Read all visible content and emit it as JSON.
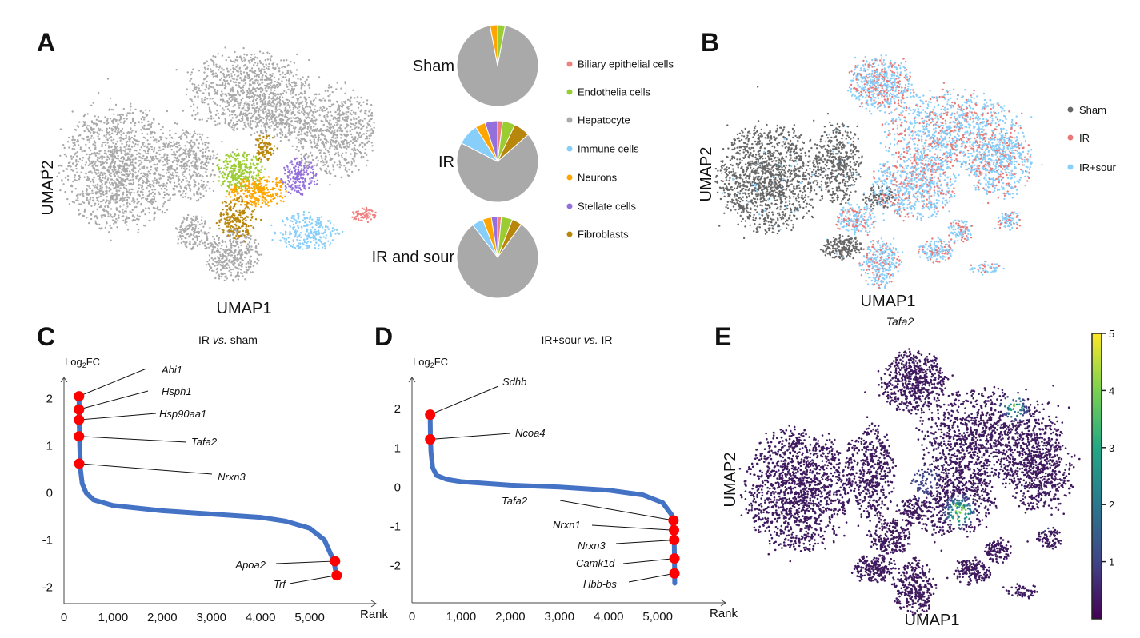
{
  "panels": {
    "A": {
      "letter": "A",
      "xlabel": "UMAP1",
      "ylabel": "UMAP2"
    },
    "B": {
      "letter": "B",
      "xlabel": "UMAP1",
      "ylabel": "UMAP2"
    },
    "C": {
      "letter": "C"
    },
    "D": {
      "letter": "D"
    },
    "E": {
      "letter": "E",
      "gene": "Tafa2",
      "xlabel": "UMAP1",
      "ylabel": "UMAP2"
    }
  },
  "cell_types": [
    {
      "name": "Biliary epithelial cells",
      "color": "#f08080"
    },
    {
      "name": "Endothelia cells",
      "color": "#9acd32"
    },
    {
      "name": "Hepatocyte",
      "color": "#a9a9a9"
    },
    {
      "name": "Immune cells",
      "color": "#87cefa"
    },
    {
      "name": "Neurons",
      "color": "#ffa500"
    },
    {
      "name": "Stellate cells",
      "color": "#9370db"
    },
    {
      "name": "Fibroblasts",
      "color": "#b8860b"
    }
  ],
  "groups": [
    {
      "name": "Sham",
      "color": "#666666"
    },
    {
      "name": "IR",
      "color": "#e87876"
    },
    {
      "name": "IR+sour",
      "color": "#87cefa"
    }
  ],
  "colorbar": {
    "ticks": [
      "1",
      "2",
      "3",
      "4",
      "5"
    ],
    "range": [
      0,
      5
    ],
    "colormap": "viridis"
  },
  "chart_data": [
    {
      "type": "pie",
      "panel": "A",
      "slice_order": [
        "Biliary epithelial cells",
        "Endothelia cells",
        "Fibroblasts",
        "Hepatocyte",
        "Immune cells",
        "Neurons",
        "Stellate cells"
      ],
      "pies": [
        {
          "label": "Sham",
          "values": [
            0,
            3,
            0,
            94,
            0,
            3,
            0
          ]
        },
        {
          "label": "IR",
          "values": [
            2,
            5,
            6.5,
            69,
            8.5,
            4,
            5
          ]
        },
        {
          "label": "IR and sour",
          "values": [
            1.5,
            4.5,
            4,
            80.5,
            4.5,
            3.5,
            2.5
          ]
        }
      ]
    },
    {
      "type": "scatter",
      "panel": "C",
      "title": "IR vs. sham",
      "title_parts": [
        "IR ",
        "vs.",
        " sham"
      ],
      "ylabel": "Log2FC",
      "ylabel_parts": [
        "Log",
        "2",
        "FC"
      ],
      "xlabel": "Rank",
      "xticks": [
        "0",
        "1,000",
        "2,000",
        "3,000",
        "4,000",
        "5,000"
      ],
      "yticks": [
        "2",
        "1",
        "0",
        "-1",
        "-2"
      ],
      "xlim": [
        0,
        6350
      ],
      "ylim": [
        -2.35,
        2.45
      ],
      "curve": [
        [
          306,
          2.1
        ],
        [
          310,
          1.5
        ],
        [
          320,
          1.0
        ],
        [
          335,
          0.5
        ],
        [
          370,
          0.2
        ],
        [
          450,
          0.0
        ],
        [
          600,
          -0.15
        ],
        [
          1000,
          -0.27
        ],
        [
          2000,
          -0.38
        ],
        [
          3000,
          -0.45
        ],
        [
          4000,
          -0.52
        ],
        [
          4500,
          -0.6
        ],
        [
          5000,
          -0.75
        ],
        [
          5300,
          -1.0
        ],
        [
          5450,
          -1.35
        ],
        [
          5510,
          -1.55
        ],
        [
          5550,
          -1.8
        ]
      ],
      "highlighted": [
        {
          "gene": "Abi1",
          "rank": 306,
          "log2fc": 2.05
        },
        {
          "gene": "Hsph1",
          "rank": 306,
          "log2fc": 1.77
        },
        {
          "gene": "Hsp90aa1",
          "rank": 306,
          "log2fc": 1.55
        },
        {
          "gene": "Tafa2",
          "rank": 306,
          "log2fc": 1.2
        },
        {
          "gene": "Nrxn3",
          "rank": 310,
          "log2fc": 0.62
        },
        {
          "gene": "Apoa2",
          "rank": 5516,
          "log2fc": -1.45
        },
        {
          "gene": "Trf",
          "rank": 5550,
          "log2fc": -1.75
        }
      ]
    },
    {
      "type": "scatter",
      "panel": "D",
      "title": "IR+sour vs. IR",
      "title_parts": [
        "IR+sour ",
        "vs.",
        " IR"
      ],
      "ylabel": "Log2FC",
      "ylabel_parts": [
        "Log",
        "2",
        "FC"
      ],
      "xlabel": "Rank",
      "xticks": [
        "0",
        "1,000",
        "2,000",
        "3,000",
        "4,000",
        "5,000"
      ],
      "yticks": [
        "2",
        "1",
        "0",
        "-1",
        "-2"
      ],
      "xlim": [
        0,
        6380
      ],
      "ylim": [
        -2.95,
        2.8
      ],
      "curve": [
        [
          370,
          1.85
        ],
        [
          375,
          1.3
        ],
        [
          385,
          0.9
        ],
        [
          420,
          0.5
        ],
        [
          500,
          0.3
        ],
        [
          700,
          0.2
        ],
        [
          1000,
          0.14
        ],
        [
          2000,
          0.05
        ],
        [
          3000,
          0.0
        ],
        [
          4000,
          -0.08
        ],
        [
          4700,
          -0.2
        ],
        [
          5100,
          -0.4
        ],
        [
          5280,
          -0.7
        ],
        [
          5330,
          -1.1
        ],
        [
          5340,
          -1.8
        ],
        [
          5345,
          -2.45
        ]
      ],
      "highlighted": [
        {
          "gene": "Sdhb",
          "rank": 370,
          "log2fc": 1.85
        },
        {
          "gene": "Ncoa4",
          "rank": 370,
          "log2fc": 1.22
        },
        {
          "gene": "Tafa2",
          "rank": 5320,
          "log2fc": -0.85
        },
        {
          "gene": "Nrxn1",
          "rank": 5330,
          "log2fc": -1.1
        },
        {
          "gene": "Nrxn3",
          "rank": 5335,
          "log2fc": -1.35
        },
        {
          "gene": "Camk1d",
          "rank": 5340,
          "log2fc": -1.82
        },
        {
          "gene": "Hbb-bs",
          "rank": 5340,
          "log2fc": -2.2
        }
      ]
    }
  ]
}
